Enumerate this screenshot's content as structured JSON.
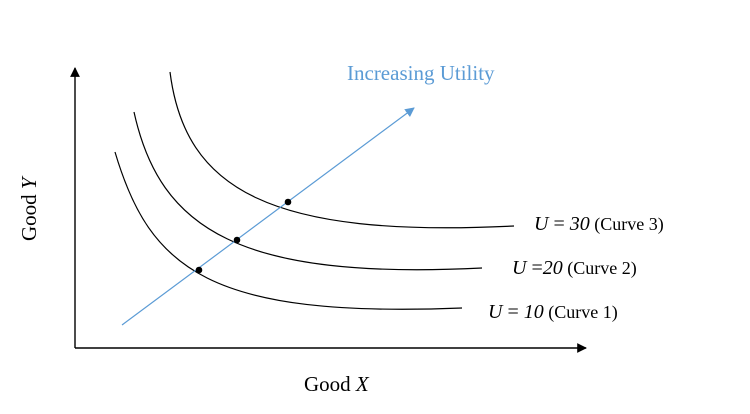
{
  "diagram": {
    "x_axis_label_prefix": "Good ",
    "x_axis_label_var": "X",
    "y_axis_label_prefix": "Good ",
    "y_axis_label_var": "Y",
    "arrow_label": "Increasing Utility",
    "colors": {
      "curves": "#000000",
      "axes": "#000000",
      "arrow": "#5b9bd5",
      "arrow_label": "#5b9bd5"
    },
    "curves": [
      {
        "id": "curve-1",
        "level_var": "U",
        "level_eq": " = ",
        "level_value": "10",
        "name": "(Curve 1)"
      },
      {
        "id": "curve-2",
        "level_var": "U",
        "level_eq": " =",
        "level_value": "20",
        "name": "(Curve 2)"
      },
      {
        "id": "curve-3",
        "level_var": "U",
        "level_eq": " = ",
        "level_value": "30",
        "name": "(Curve 3)"
      }
    ]
  }
}
